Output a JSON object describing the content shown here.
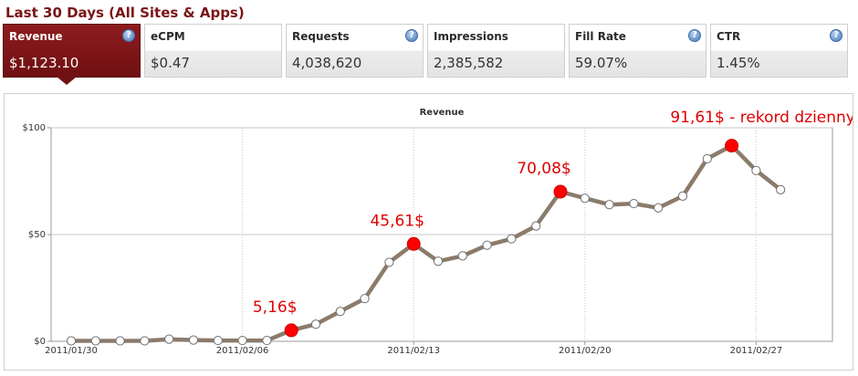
{
  "page_title": "Last 30 Days (All Sites & Apps)",
  "metrics": [
    {
      "label": "Revenue",
      "value": "$1,123.10",
      "active": true
    },
    {
      "label": "eCPM",
      "value": "$0.47",
      "active": false
    },
    {
      "label": "Requests",
      "value": "4,038,620",
      "active": false
    },
    {
      "label": "Impressions",
      "value": "2,385,582",
      "active": false
    },
    {
      "label": "Fill Rate",
      "value": "59.07%",
      "active": false
    },
    {
      "label": "CTR",
      "value": "1.45%",
      "active": false
    }
  ],
  "help_glyph": "?",
  "icons": {
    "help": "help-question-icon"
  },
  "colors": {
    "brand": "#7a1416",
    "line": "#8b7b6b",
    "highlight": "#ff0000",
    "annotation_text": "#e00000"
  },
  "chart_data": {
    "type": "line",
    "title": "Revenue",
    "xlabel": "",
    "ylabel": "",
    "x_start": "2011/01/30",
    "xticks": [
      "2011/01/30",
      "2011/02/06",
      "2011/02/13",
      "2011/02/20",
      "2011/02/27"
    ],
    "yticks": [
      "$0",
      "$50",
      "$100"
    ],
    "ylim": [
      0,
      100
    ],
    "grid": true,
    "legend": "none",
    "series": [
      {
        "values": [
          0.2,
          0.2,
          0.2,
          0.2,
          1.0,
          0.6,
          0.4,
          0.4,
          0.4,
          5.16,
          8,
          14,
          20,
          37,
          45.61,
          37.5,
          40,
          45,
          48,
          54,
          70.08,
          67,
          64,
          64.5,
          62.5,
          68,
          85.5,
          91.61,
          80,
          71
        ]
      }
    ],
    "highlights": [
      {
        "index": 9,
        "value": 5.16,
        "label": "5,16$"
      },
      {
        "index": 14,
        "value": 45.61,
        "label": "45,61$"
      },
      {
        "index": 20,
        "value": 70.08,
        "label": "70,08$"
      },
      {
        "index": 27,
        "value": 91.61,
        "label": "91,61$ - rekord dzienny"
      }
    ]
  }
}
